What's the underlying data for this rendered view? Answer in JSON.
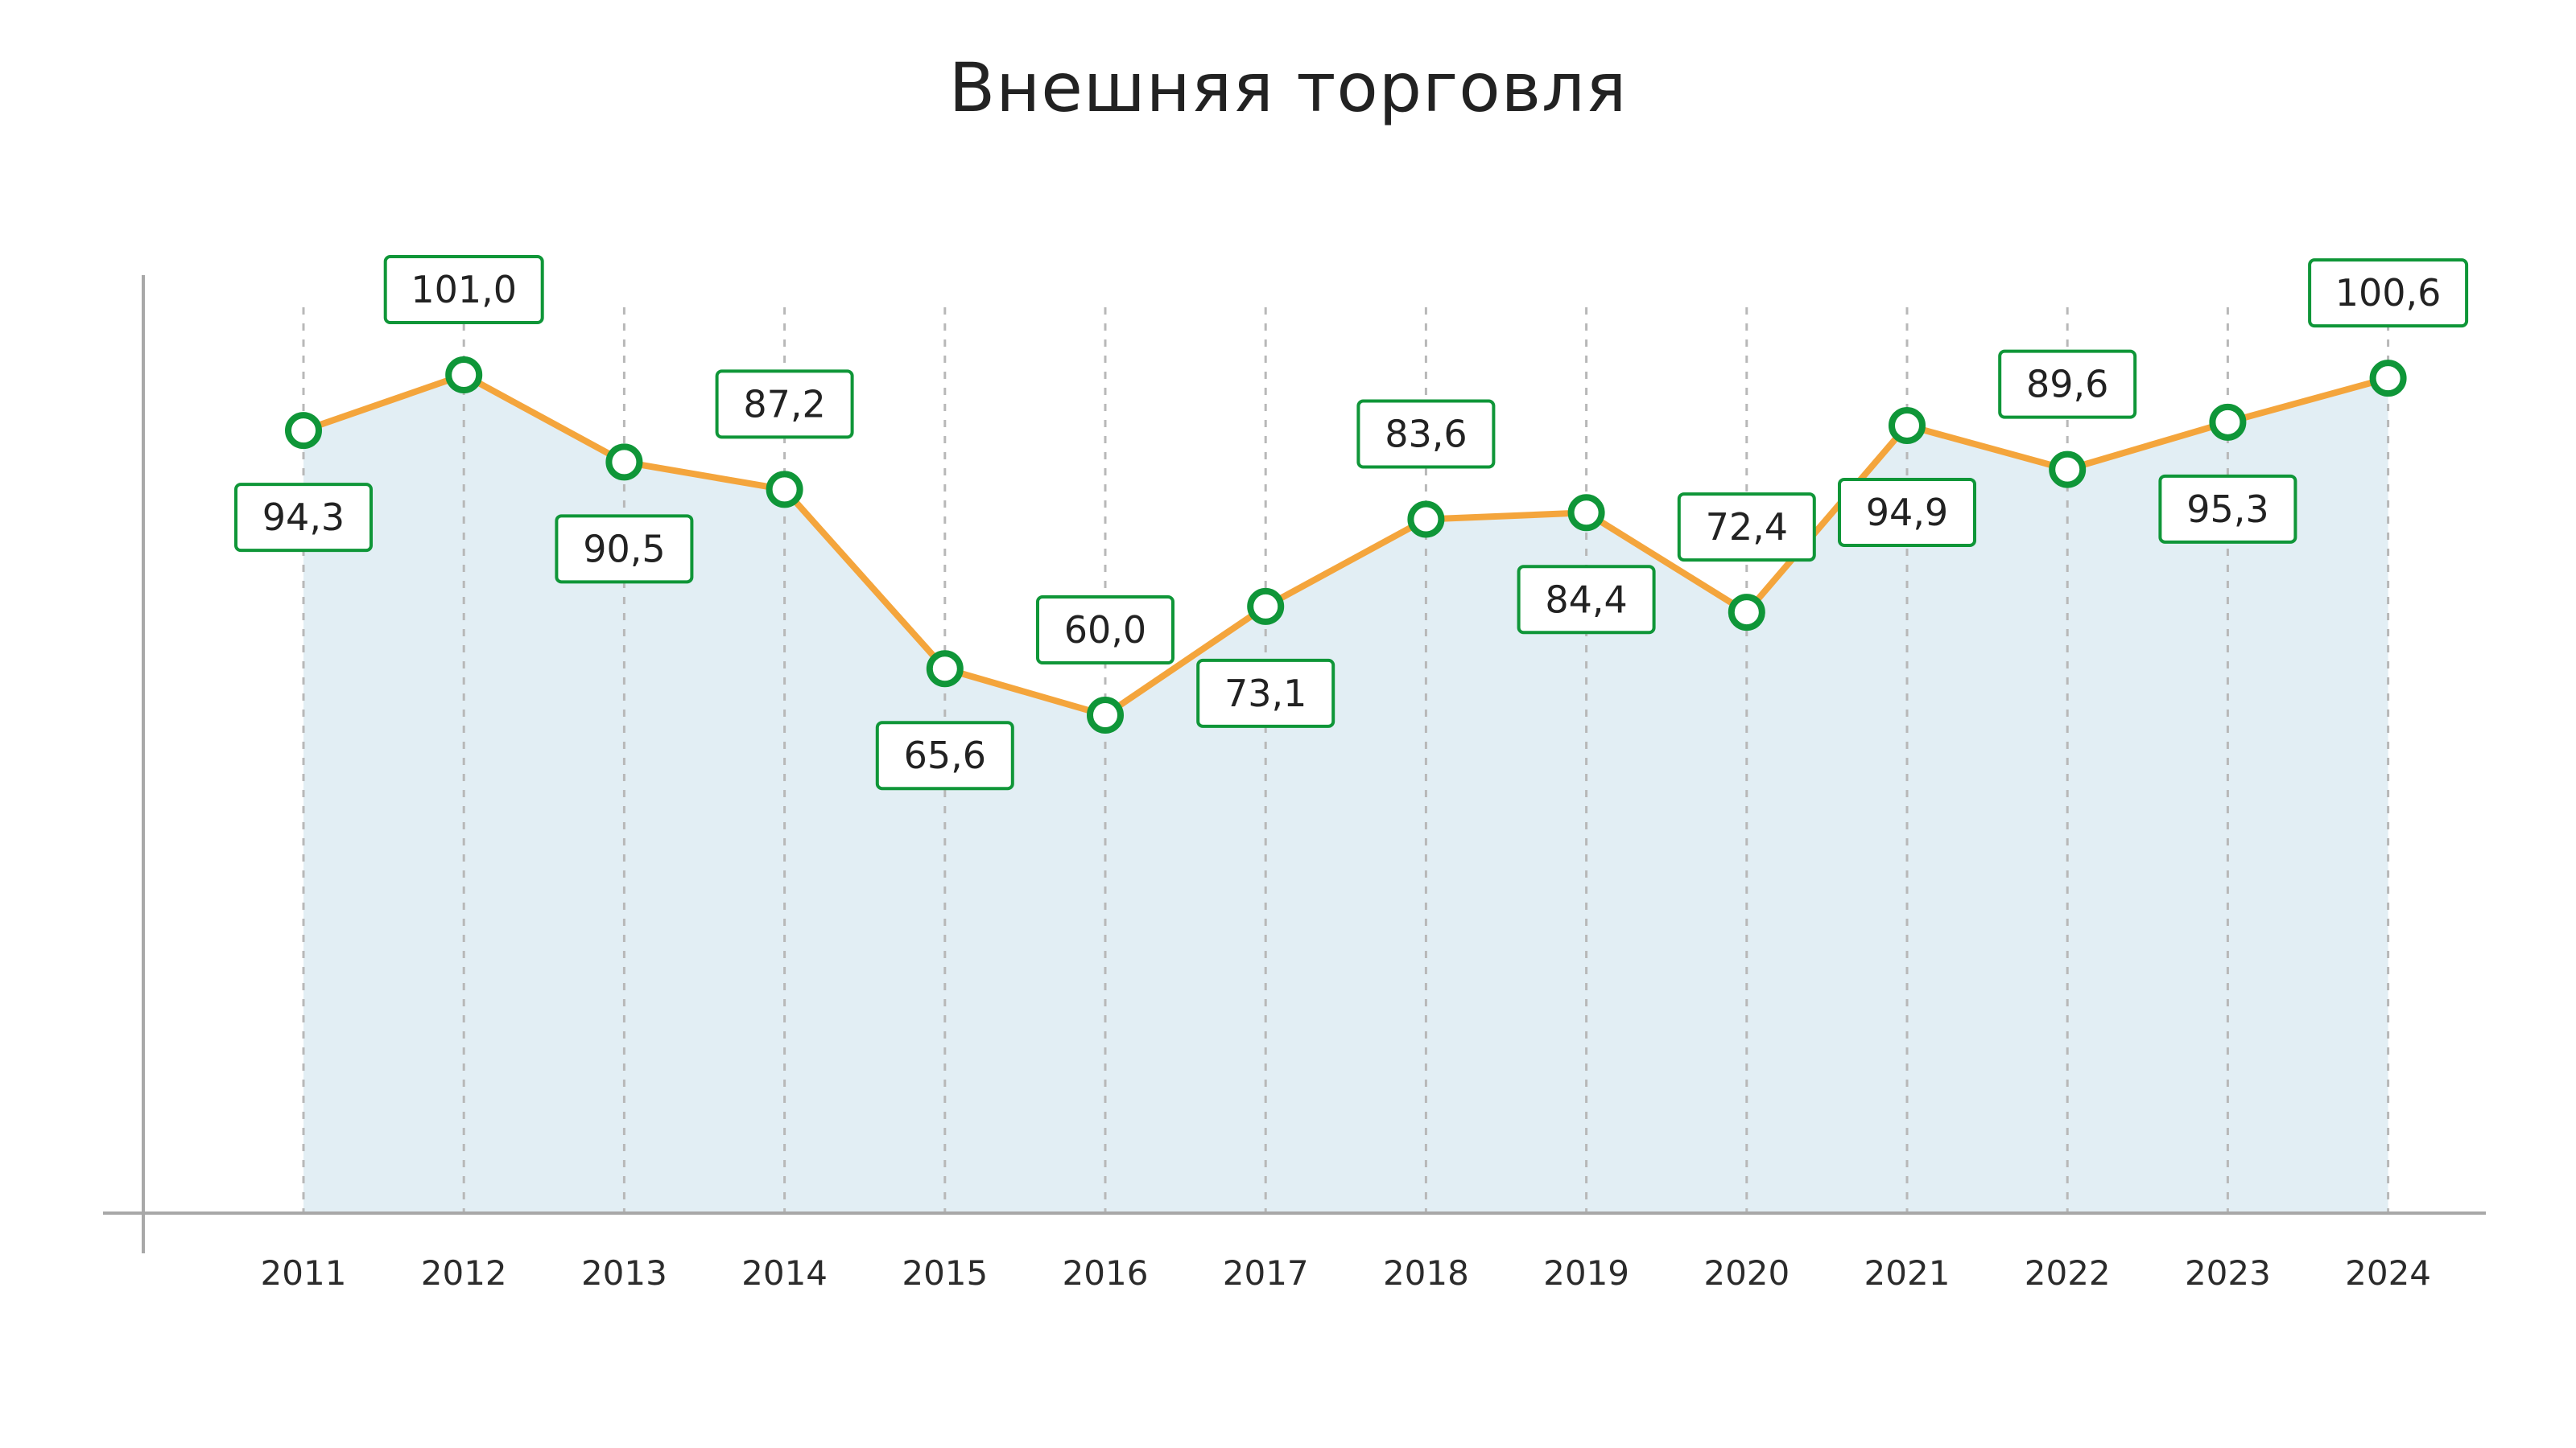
{
  "title": "Внешняя торговля",
  "colors": {
    "line": "#f4a53c",
    "marker": "#0f9638",
    "area": "#e2eef4",
    "grid": "#b8b8b8",
    "axis": "#a8a8a8"
  },
  "chart_data": {
    "type": "line",
    "title": "Внешняя торговля",
    "xlabel": "",
    "ylabel": "",
    "ylim": [
      0,
      120
    ],
    "grid": "vertical dashed",
    "legend": "none",
    "categories": [
      "2011",
      "2012",
      "2013",
      "2014",
      "2015",
      "2016",
      "2017",
      "2018",
      "2019",
      "2020",
      "2021",
      "2022",
      "2023",
      "2024"
    ],
    "series": [
      {
        "values": [
          94.3,
          101.0,
          90.5,
          87.2,
          65.6,
          60.0,
          73.1,
          83.6,
          84.4,
          72.4,
          94.9,
          89.6,
          95.3,
          100.6
        ],
        "labels": [
          "94,3",
          "101,0",
          "90,5",
          "87,2",
          "65,6",
          "60,0",
          "73,1",
          "83,6",
          "84,4",
          "72,4",
          "94,9",
          "89,6",
          "95,3",
          "100,6"
        ],
        "label_positions": [
          "below",
          "above",
          "below",
          "above",
          "below",
          "above",
          "below",
          "above",
          "below",
          "above",
          "below",
          "above",
          "below",
          "above"
        ]
      }
    ]
  }
}
